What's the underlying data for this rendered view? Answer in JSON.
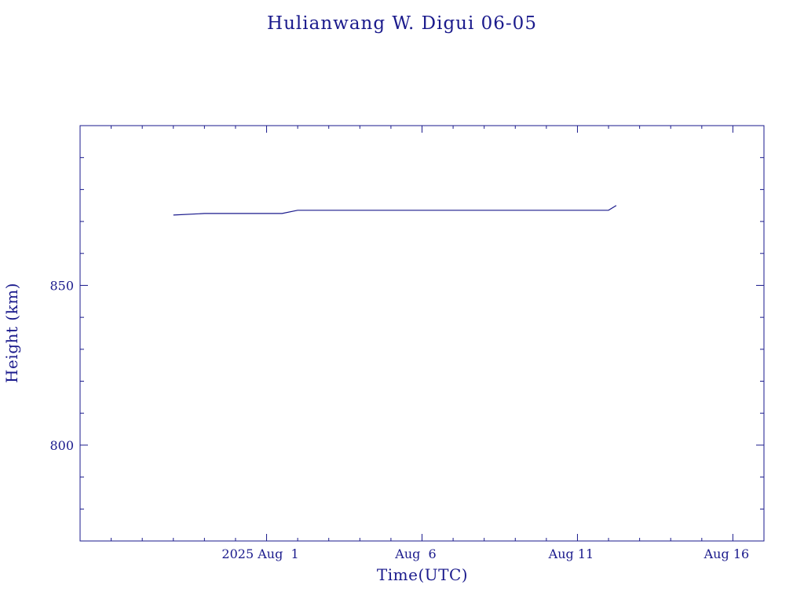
{
  "chart_data": {
    "type": "line",
    "title": "Hulianwang W. Digui 06-05",
    "xlabel": "Time(UTC)",
    "ylabel": "Height (km)",
    "x_unit": "date (UTC)",
    "xlim": [
      "2025-07-26",
      "2025-08-17"
    ],
    "ylim": [
      770,
      900
    ],
    "x_major_ticks": [
      "2025-08-01",
      "2025-08-06",
      "2025-08-11",
      "2025-08-16"
    ],
    "x_tick_labels": [
      "2025 Aug  1",
      "Aug  6",
      "Aug 11",
      "Aug 16"
    ],
    "x_minor_step_days": 1,
    "y_major_ticks": [
      800,
      850
    ],
    "y_tick_labels": [
      "800",
      "850"
    ],
    "y_minor_step": 10,
    "grid": false,
    "color": "#1a1a8c",
    "series": [
      {
        "x": [
          "2025-07-29",
          "2025-07-30",
          "2025-08-01",
          "2025-08-01T12:00",
          "2025-08-02",
          "2025-08-06",
          "2025-08-10",
          "2025-08-12",
          "2025-08-12T06:00"
        ],
        "y": [
          872,
          872.5,
          872.5,
          872.5,
          873.5,
          873.5,
          873.5,
          873.5,
          875
        ]
      }
    ]
  }
}
